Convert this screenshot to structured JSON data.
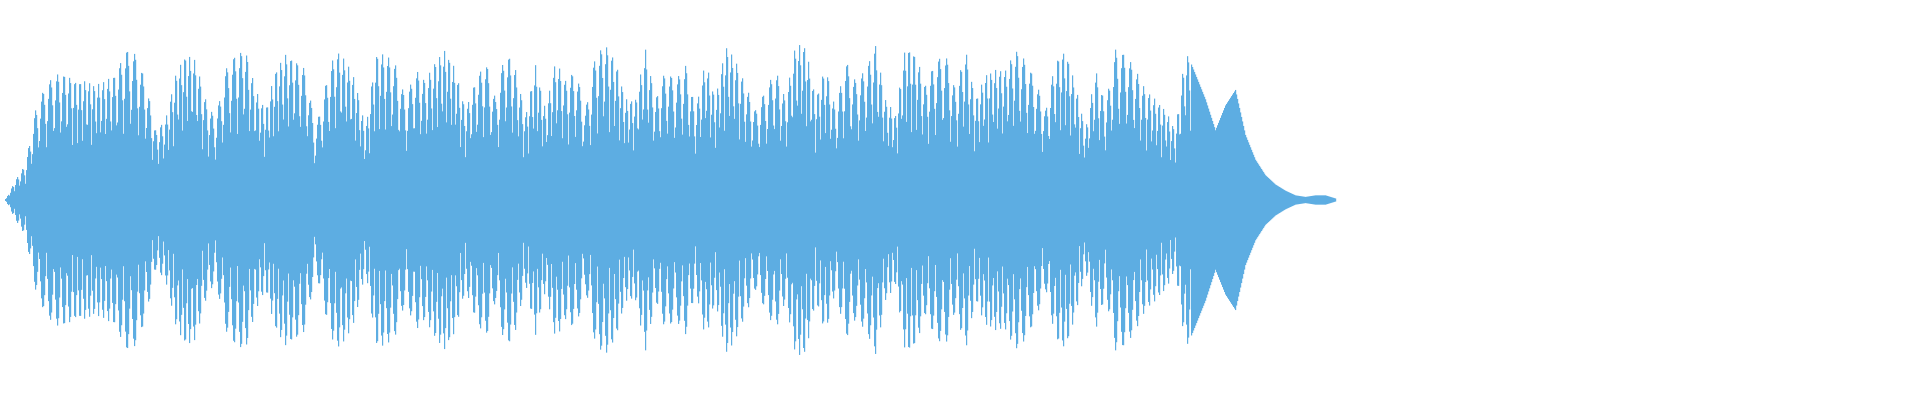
{
  "waveform": {
    "color": "#5dade2",
    "background": "#ffffff",
    "peak_envelope": [
      0.0,
      0.13,
      0.23,
      0.58,
      0.74,
      0.81,
      0.81,
      0.77,
      0.77,
      0.74,
      0.77,
      0.81,
      0.97,
      0.94,
      0.77,
      0.45,
      0.52,
      0.81,
      0.94,
      0.9,
      0.65,
      0.52,
      0.84,
      0.94,
      0.97,
      0.71,
      0.58,
      0.84,
      0.94,
      0.9,
      0.84,
      0.45,
      0.74,
      0.97,
      0.9,
      0.77,
      0.45,
      0.94,
      0.94,
      0.87,
      0.65,
      0.84,
      0.77,
      0.9,
      0.97,
      0.84,
      0.58,
      0.77,
      0.9,
      0.65,
      0.97,
      0.84,
      0.55,
      0.87,
      0.58,
      0.9,
      0.77,
      0.84,
      0.58,
      0.94,
      1.0,
      0.9,
      0.65,
      0.65,
      0.97,
      0.65,
      0.84,
      0.77,
      0.87,
      0.58,
      0.9,
      0.65,
      1.0,
      0.9,
      0.74,
      0.58,
      0.71,
      0.84,
      0.65,
      1.0,
      1.0,
      0.65,
      0.87,
      0.58,
      0.9,
      0.77,
      0.84,
      1.0,
      0.65,
      0.55,
      1.0,
      0.94,
      0.74,
      0.9,
      0.94,
      0.71,
      0.97,
      0.65,
      0.81,
      0.84,
      0.84,
      0.97,
      0.9,
      0.77,
      0.58,
      0.9,
      0.97,
      0.74,
      0.45,
      0.84,
      0.61,
      0.97,
      0.94,
      0.84,
      0.71,
      0.65,
      0.58,
      0.45,
      0.97,
      0.81,
      0.65,
      0.45,
      0.61,
      0.71,
      0.42,
      0.26,
      0.16,
      0.1,
      0.06,
      0.03,
      0.02,
      0.03,
      0.03,
      0.01
    ]
  }
}
